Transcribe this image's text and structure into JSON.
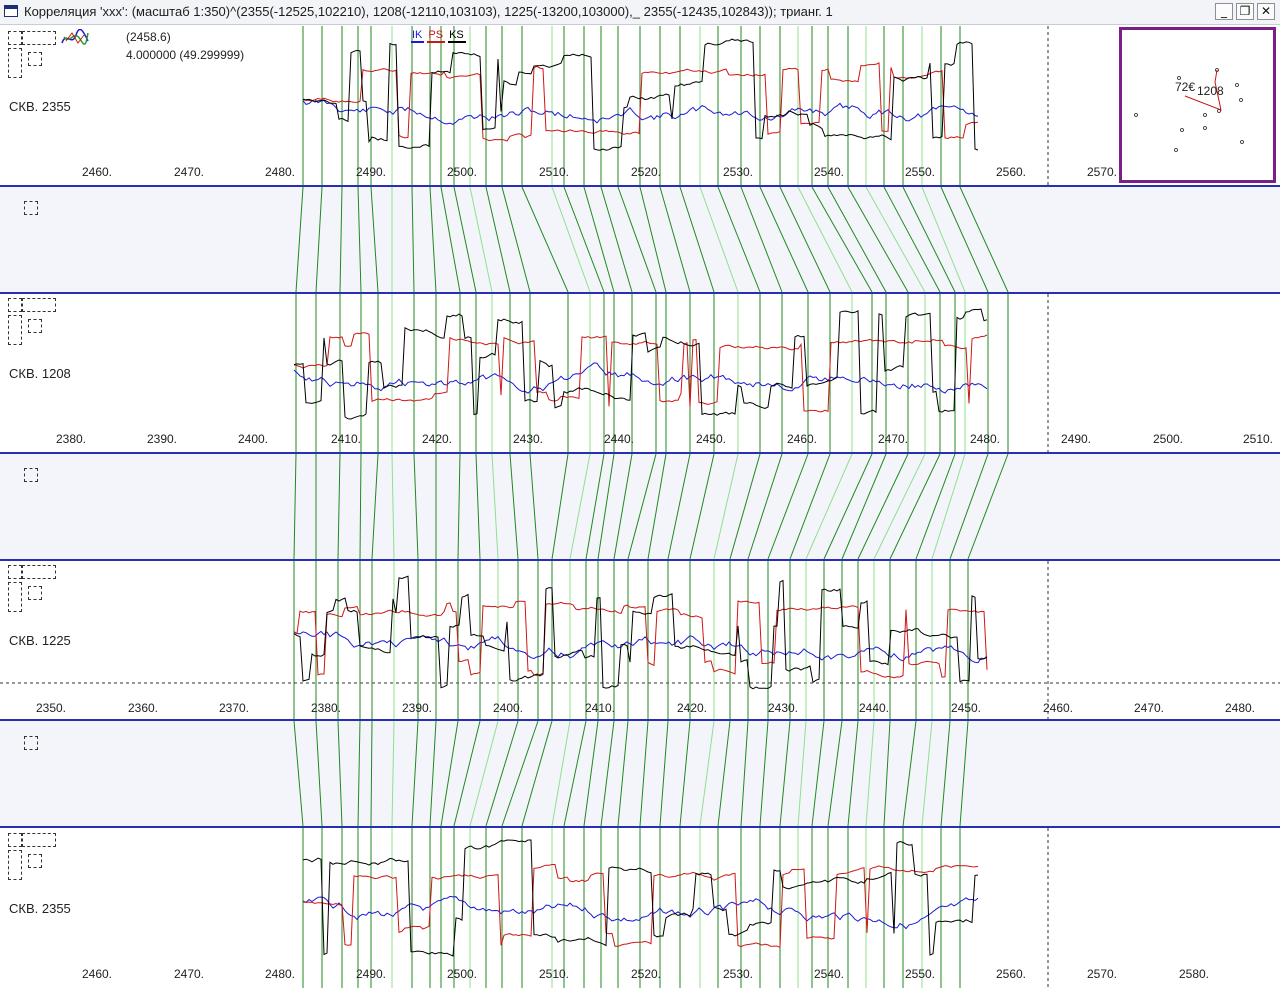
{
  "window": {
    "title": "Корреляция 'xxx': (масштаб 1:350)^(2355(-12525,102210),  1208(-12110,103103),  1225(-13200,103000),_ 2355(-12435,102843)); трианг. 1",
    "minimize_label": "_",
    "restore_label": "❐",
    "close_label": "✕"
  },
  "readout": {
    "depth": "(2458.6)",
    "value": "4.000000 (49.299999)"
  },
  "legend": [
    {
      "name": "IK",
      "color": "#1a1ad6"
    },
    {
      "name": "PS",
      "color": "#d01515"
    },
    {
      "name": "KS",
      "color": "#000000"
    }
  ],
  "colors": {
    "separator": "#2a2fb0",
    "gap_fill": "#f4f5fb",
    "correlation_line": "#1f8a1f",
    "correlation_line_light": "#8fe08f",
    "minimap_border": "#7a1f86"
  },
  "tracks": [
    {
      "well": "СКВ. 2355",
      "ticks": [
        "2460.",
        "2470.",
        "2480.",
        "2490.",
        "2500.",
        "2510.",
        "2520.",
        "2530.",
        "2540.",
        "2550.",
        "2560.",
        "2570."
      ]
    },
    {
      "well": "СКВ. 1208",
      "ticks": [
        "2380.",
        "2390.",
        "2400.",
        "2410.",
        "2420.",
        "2430.",
        "2440.",
        "2450.",
        "2460.",
        "2470.",
        "2480.",
        "2490.",
        "2500.",
        "2510."
      ]
    },
    {
      "well": "СКВ. 1225",
      "ticks": [
        "2350.",
        "2360.",
        "2370.",
        "2380.",
        "2390.",
        "2400.",
        "2410.",
        "2420.",
        "2430.",
        "2440.",
        "2450.",
        "2460.",
        "2470.",
        "2480."
      ]
    },
    {
      "well": "СКВ. 2355",
      "ticks": [
        "2460.",
        "2470.",
        "2480.",
        "2490.",
        "2500.",
        "2510.",
        "2520.",
        "2530.",
        "2540.",
        "2550.",
        "2560.",
        "2570.",
        "2580."
      ]
    }
  ],
  "minimap": {
    "labels": [
      "72€",
      "1208"
    ]
  }
}
